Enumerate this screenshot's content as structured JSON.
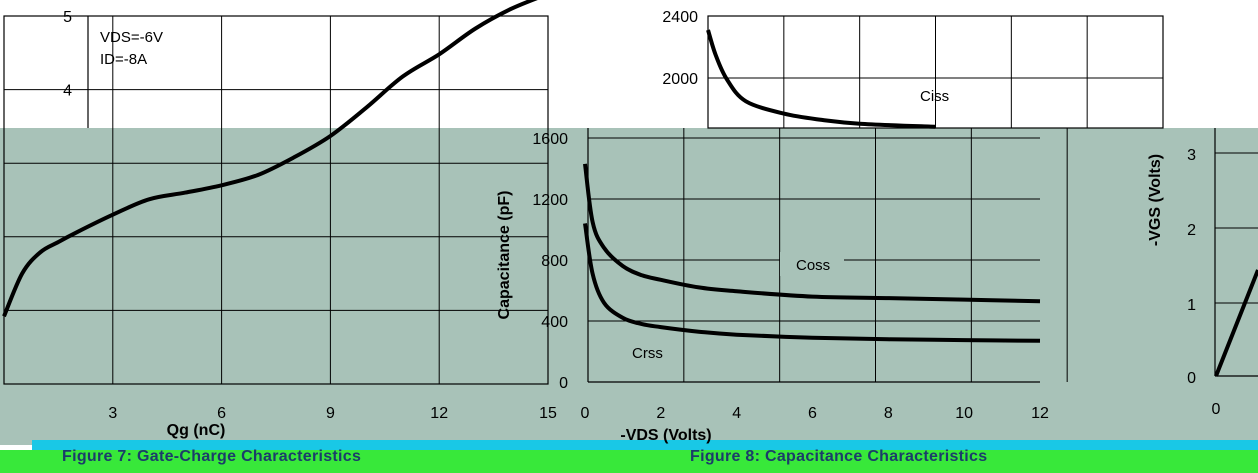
{
  "figure7": {
    "caption": "Figure 7: Gate-Charge Characteristics",
    "annotations": [
      "VDS=-6V",
      "ID=-8A"
    ],
    "xlabel": "Qg (nC)",
    "ylabel": "-VGS (Volts)",
    "y_ticks_upper": [
      "5",
      "4"
    ],
    "x_ticks": [
      "3",
      "6",
      "9",
      "12",
      "15"
    ]
  },
  "figure8": {
    "caption": "Figure 8: Capacitance Characteristics",
    "xlabel": "-VDS (Volts)",
    "ylabel": "Capacitance (pF)",
    "y_ticks": [
      "2400",
      "2000",
      "1600",
      "1200",
      "800",
      "400",
      "0"
    ],
    "x_ticks": [
      "0",
      "2",
      "4",
      "6",
      "8",
      "10",
      "12"
    ],
    "curve_labels": {
      "ciss": "Ciss",
      "coss": "Coss",
      "crss": "Crss"
    }
  },
  "right_partial": {
    "ylabel": "-VGS (Volts)",
    "y_ticks": [
      "3",
      "2",
      "1",
      "0"
    ],
    "x_ticks": [
      "0"
    ]
  },
  "chart_data": [
    {
      "type": "line",
      "name": "Figure 7: Gate-Charge Characteristics",
      "xlabel": "Qg (nC)",
      "ylabel": "-VGS (Volts)",
      "xlim": [
        0,
        15
      ],
      "ylim": [
        0,
        5
      ],
      "grid": true,
      "series": [
        {
          "x": [
            0,
            0.5,
            1,
            1.5,
            2,
            3,
            4,
            5,
            6,
            7,
            8,
            9,
            10,
            11,
            12,
            13,
            14,
            15
          ],
          "y": [
            0.92,
            1.5,
            1.79,
            1.93,
            2.06,
            2.3,
            2.51,
            2.6,
            2.7,
            2.84,
            3.08,
            3.37,
            3.76,
            4.18,
            4.48,
            4.83,
            5.1,
            5.3
          ]
        }
      ]
    },
    {
      "type": "line",
      "name": "Figure 8: Capacitance Characteristics",
      "xlabel": "-VDS (Volts)",
      "ylabel": "Capacitance (pF)",
      "xlim": [
        0,
        12
      ],
      "ylim": [
        0,
        2400
      ],
      "grid": true,
      "series": [
        {
          "name": "Ciss",
          "x": [
            0,
            0.2,
            0.5,
            1,
            2,
            3,
            4,
            6,
            8,
            10,
            12
          ],
          "y": [
            2310,
            2150,
            1990,
            1850,
            1770,
            1730,
            1705,
            1685,
            1675,
            1668,
            1660
          ]
        },
        {
          "name": "Coss",
          "x": [
            0,
            0.2,
            0.5,
            1,
            1.5,
            2,
            3,
            4,
            6,
            8,
            10,
            12
          ],
          "y": [
            1430,
            1050,
            880,
            760,
            700,
            670,
            620,
            595,
            560,
            550,
            540,
            530
          ]
        },
        {
          "name": "Crss",
          "x": [
            0,
            0.2,
            0.5,
            1,
            1.5,
            2,
            3,
            4,
            6,
            8,
            10,
            12
          ],
          "y": [
            1040,
            710,
            520,
            420,
            380,
            360,
            330,
            310,
            290,
            280,
            275,
            270
          ]
        }
      ]
    }
  ]
}
